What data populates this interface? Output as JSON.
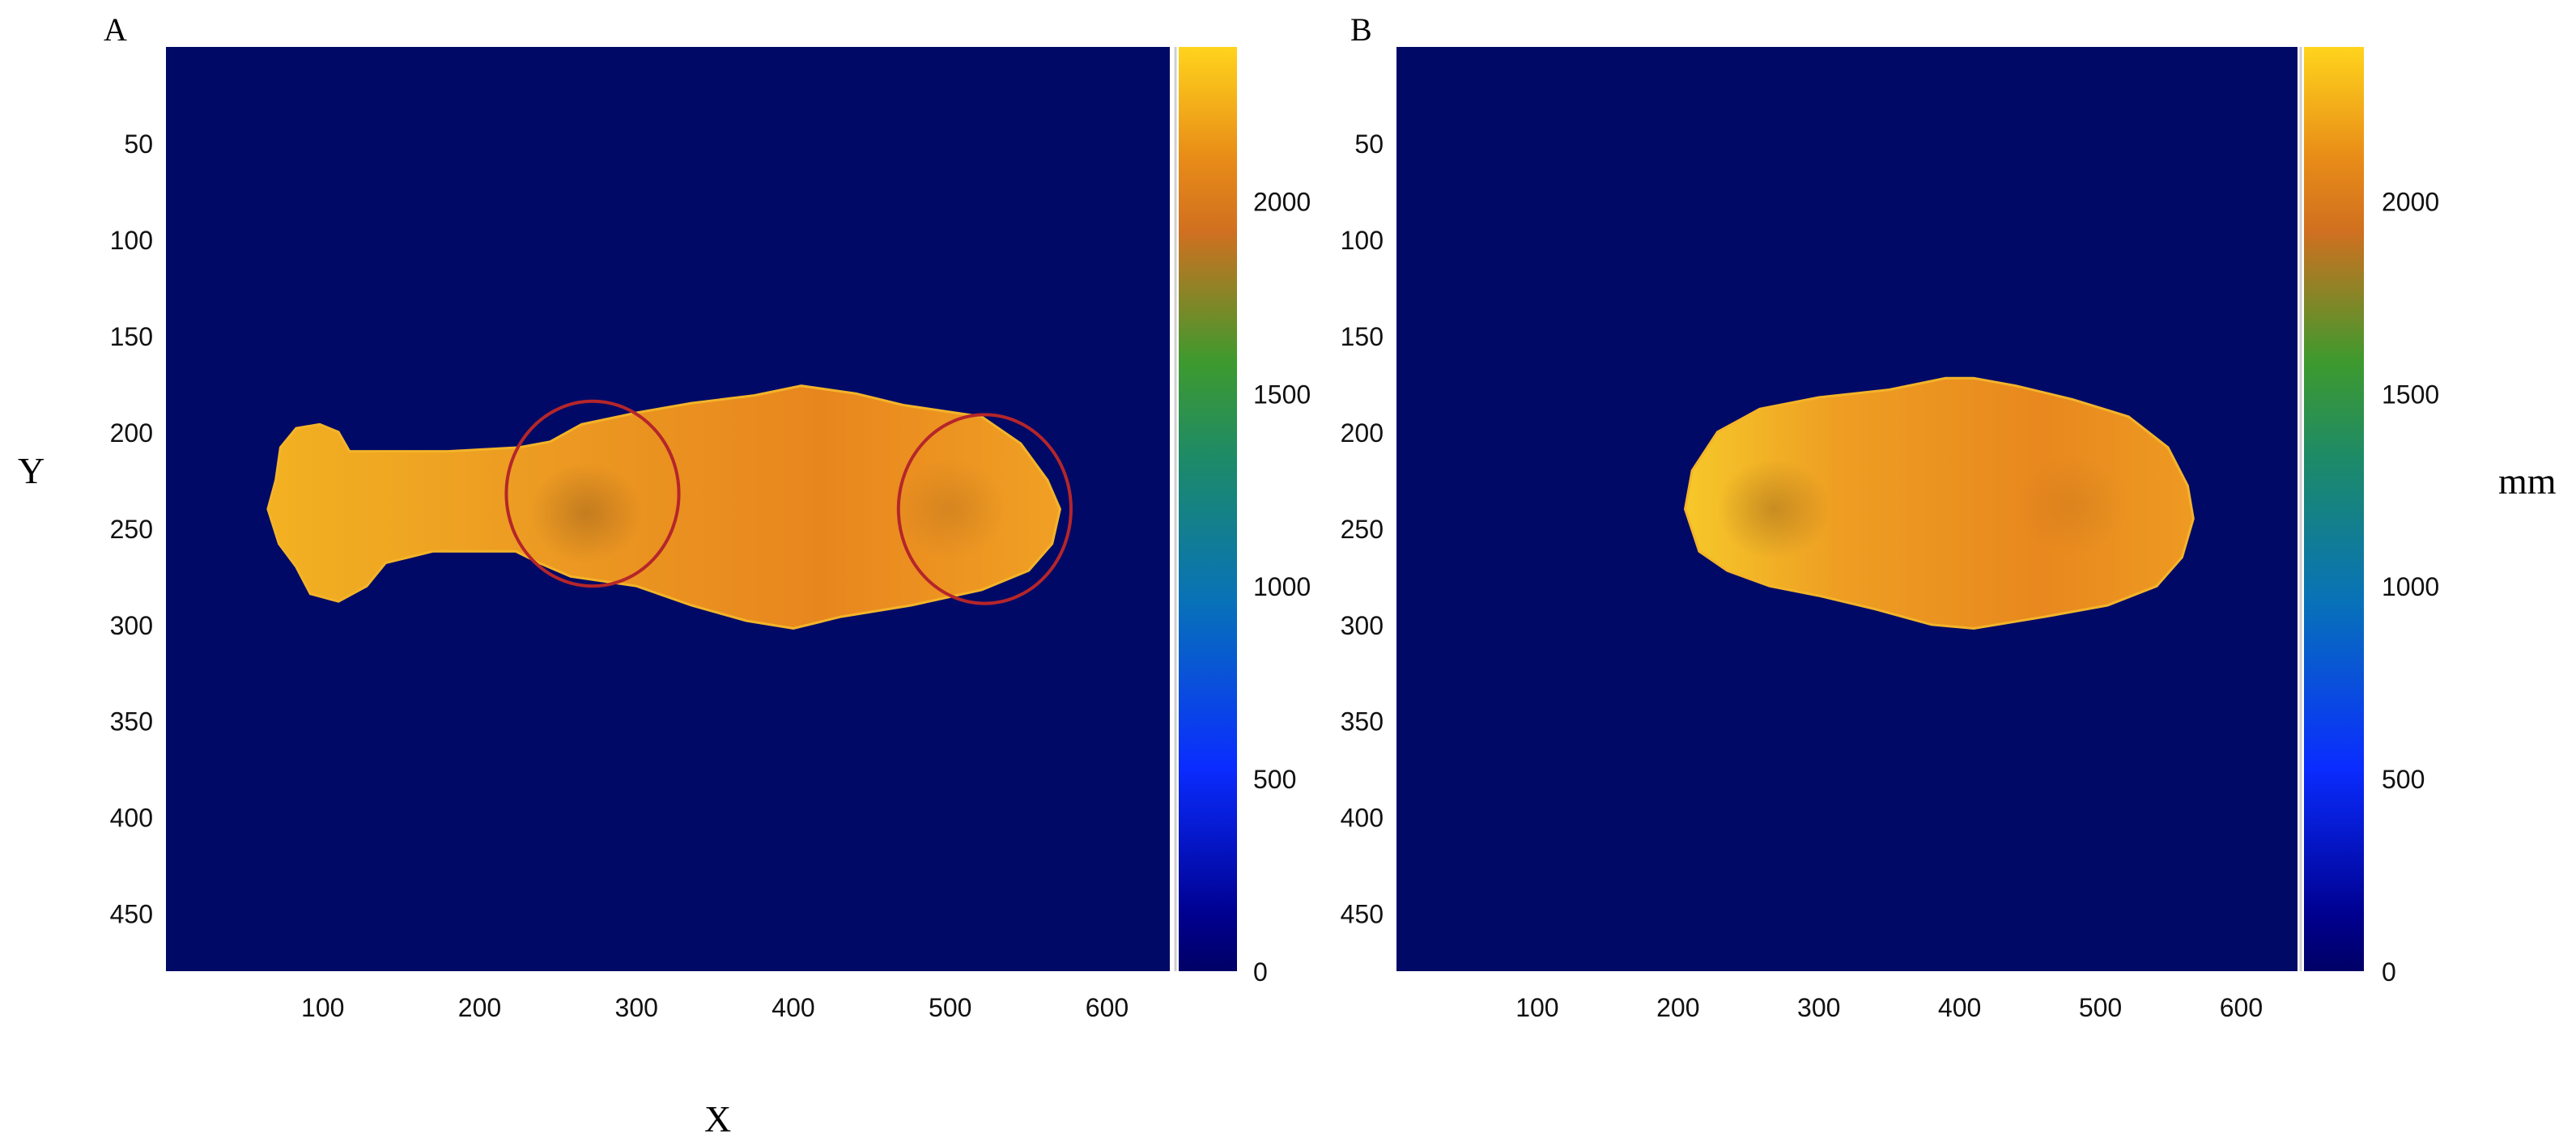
{
  "figure_axis_labels": {
    "x": "X",
    "y": "Y",
    "colorbar_unit": "mm"
  },
  "chart_data": [
    {
      "type": "heatmap",
      "panel_label": "A",
      "xlim": [
        0,
        640
      ],
      "ylim": [
        480,
        0
      ],
      "x_ticks": [
        "100",
        "200",
        "300",
        "400",
        "500",
        "600"
      ],
      "y_ticks": [
        "50",
        "100",
        "150",
        "200",
        "250",
        "300",
        "350",
        "400",
        "450"
      ],
      "background_value": 0,
      "colorbar": {
        "min": 0,
        "max": 2400,
        "ticks": [
          "0",
          "500",
          "1000",
          "1500",
          "2000"
        ],
        "colormap": "jet-like"
      },
      "object": {
        "description_value_mm": 2150,
        "outline": [
          [
            65,
            240
          ],
          [
            70,
            225
          ],
          [
            73,
            208
          ],
          [
            83,
            198
          ],
          [
            98,
            196
          ],
          [
            110,
            200
          ],
          [
            117,
            210
          ],
          [
            140,
            210
          ],
          [
            180,
            210
          ],
          [
            225,
            208
          ],
          [
            245,
            205
          ],
          [
            265,
            196
          ],
          [
            300,
            190
          ],
          [
            335,
            185
          ],
          [
            375,
            181
          ],
          [
            405,
            176
          ],
          [
            440,
            180
          ],
          [
            470,
            186
          ],
          [
            520,
            192
          ],
          [
            545,
            206
          ],
          [
            562,
            225
          ],
          [
            570,
            240
          ],
          [
            565,
            258
          ],
          [
            550,
            272
          ],
          [
            520,
            282
          ],
          [
            475,
            290
          ],
          [
            430,
            296
          ],
          [
            400,
            302
          ],
          [
            370,
            298
          ],
          [
            335,
            290
          ],
          [
            300,
            280
          ],
          [
            258,
            275
          ],
          [
            238,
            268
          ],
          [
            223,
            262
          ],
          [
            205,
            262
          ],
          [
            170,
            262
          ],
          [
            140,
            268
          ],
          [
            128,
            280
          ],
          [
            110,
            288
          ],
          [
            92,
            284
          ],
          [
            83,
            270
          ],
          [
            72,
            258
          ]
        ],
        "dark_spots": [
          [
            268,
            242,
            0.35
          ],
          [
            500,
            240,
            0.2
          ]
        ]
      },
      "circles": [
        {
          "cx": 272,
          "cy": 232,
          "rx": 55,
          "ry": 48,
          "color": "#b5262a"
        },
        {
          "cx": 522,
          "cy": 240,
          "rx": 55,
          "ry": 49,
          "color": "#b5262a"
        }
      ]
    },
    {
      "type": "heatmap",
      "panel_label": "B",
      "xlim": [
        0,
        640
      ],
      "ylim": [
        480,
        0
      ],
      "x_ticks": [
        "100",
        "200",
        "300",
        "400",
        "500",
        "600"
      ],
      "y_ticks": [
        "50",
        "100",
        "150",
        "200",
        "250",
        "300",
        "350",
        "400",
        "450"
      ],
      "background_value": 0,
      "colorbar": {
        "min": 0,
        "max": 2400,
        "ticks": [
          "0",
          "500",
          "1000",
          "1500",
          "2000"
        ],
        "colormap": "jet-like"
      },
      "object": {
        "description_value_mm": 2150,
        "outline": [
          [
            205,
            240
          ],
          [
            210,
            220
          ],
          [
            228,
            200
          ],
          [
            258,
            188
          ],
          [
            300,
            182
          ],
          [
            350,
            178
          ],
          [
            390,
            172
          ],
          [
            410,
            172
          ],
          [
            440,
            176
          ],
          [
            480,
            183
          ],
          [
            520,
            192
          ],
          [
            548,
            208
          ],
          [
            562,
            228
          ],
          [
            566,
            245
          ],
          [
            558,
            265
          ],
          [
            540,
            280
          ],
          [
            505,
            290
          ],
          [
            460,
            296
          ],
          [
            410,
            302
          ],
          [
            380,
            300
          ],
          [
            340,
            292
          ],
          [
            300,
            285
          ],
          [
            265,
            280
          ],
          [
            235,
            272
          ],
          [
            215,
            262
          ]
        ],
        "dark_spots": [
          [
            268,
            240,
            0.35
          ],
          [
            480,
            238,
            0.12
          ]
        ]
      },
      "circles": []
    }
  ]
}
